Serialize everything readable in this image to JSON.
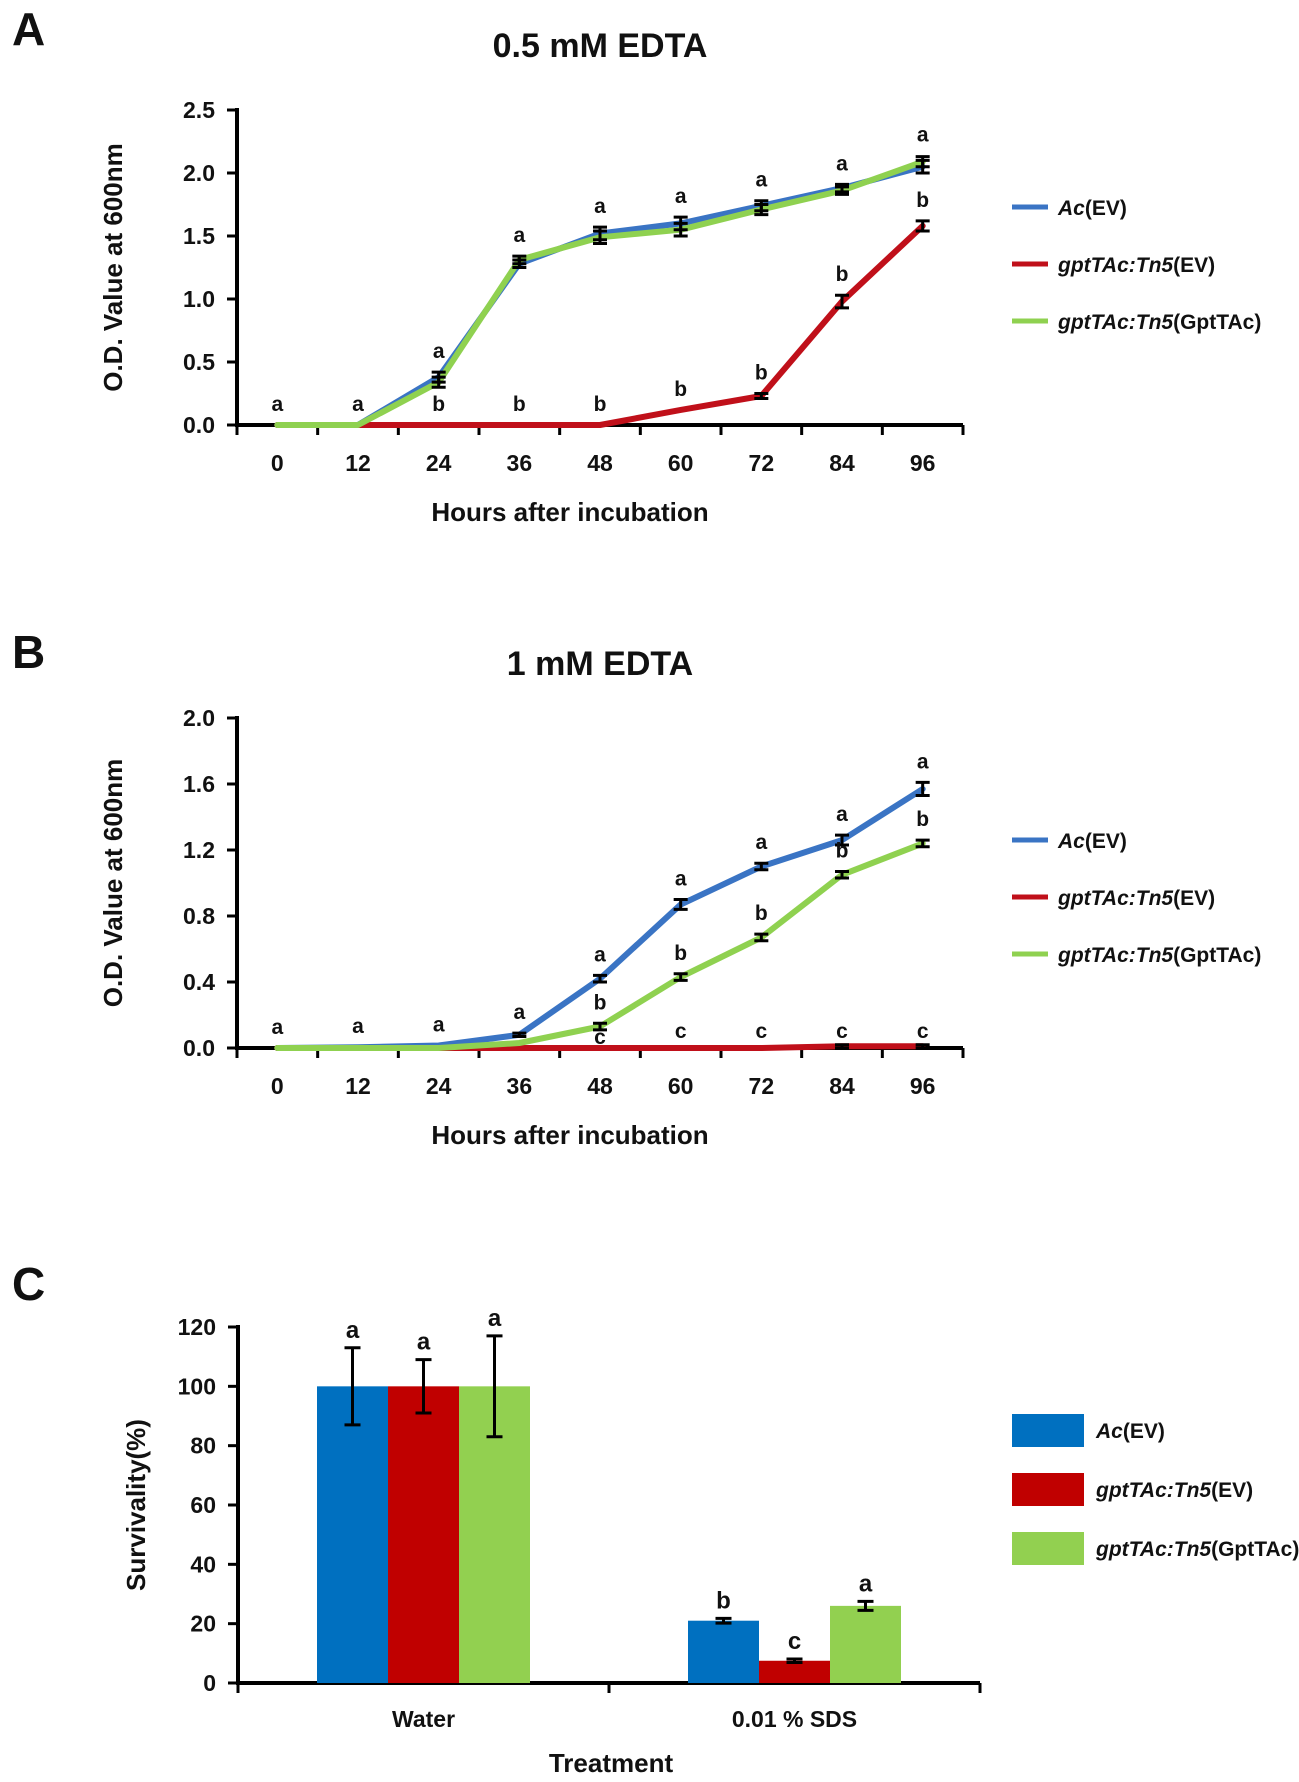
{
  "colors": {
    "ac_ev_line": "#3a74c4",
    "mutant_ev_line": "#c0101a",
    "complemented_line": "#8fd150",
    "ac_ev_bar": "#0070c0",
    "mutant_ev_bar": "#c00000",
    "complemented_bar": "#92d050"
  },
  "panels": {
    "a": "A",
    "b": "B",
    "c": "C"
  },
  "chart_data": [
    {
      "id": "A",
      "type": "line",
      "title": "0.5 mM EDTA",
      "xlabel": "Hours after incubation",
      "ylabel": "O.D. Value at 600nm",
      "x": [
        0,
        12,
        24,
        36,
        48,
        60,
        72,
        84,
        96
      ],
      "ylim": [
        0,
        2.5
      ],
      "yticks": [
        "0.0",
        "0.5",
        "1.0",
        "1.5",
        "2.0",
        "2.5"
      ],
      "series": [
        {
          "name": "Ac(EV)",
          "italic": "Ac",
          "suffix": "(EV)",
          "color": "#3a74c4",
          "values": [
            0,
            0,
            0.38,
            1.28,
            1.52,
            1.6,
            1.74,
            1.88,
            2.05
          ],
          "errors": [
            0,
            0,
            0.04,
            0.03,
            0.05,
            0.05,
            0.04,
            0.03,
            0.05
          ],
          "letters": [
            "a",
            "a",
            "a",
            "a",
            "a",
            "a",
            "a",
            "a",
            "a"
          ]
        },
        {
          "name": "gptTAc:Tn5(EV)",
          "italic": "gptTAc:Tn5",
          "suffix": "(EV)",
          "color": "#c0101a",
          "values": [
            0,
            0,
            0,
            0,
            0,
            0.12,
            0.23,
            0.98,
            1.58
          ],
          "errors": [
            0,
            0,
            0,
            0,
            0,
            0,
            0.02,
            0.05,
            0.04
          ],
          "letters": [
            "",
            "",
            "b",
            "b",
            "b",
            "b",
            "b",
            "b",
            "b"
          ]
        },
        {
          "name": "gptTAc:Tn5(GptTAc)",
          "italic": "gptTAc:Tn5",
          "suffix": "(GptTAc)",
          "color": "#8fd150",
          "values": [
            0,
            0,
            0.34,
            1.31,
            1.49,
            1.55,
            1.71,
            1.86,
            2.09
          ],
          "errors": [
            0,
            0,
            0.04,
            0.03,
            0.05,
            0.05,
            0.04,
            0.03,
            0.04
          ],
          "letters": [
            "",
            "",
            "",
            "",
            "",
            "",
            "",
            "",
            ""
          ]
        }
      ]
    },
    {
      "id": "B",
      "type": "line",
      "title": "1 mM EDTA",
      "xlabel": "Hours after incubation",
      "ylabel": "O.D. Value at 600nm",
      "x": [
        0,
        12,
        24,
        36,
        48,
        60,
        72,
        84,
        96
      ],
      "ylim": [
        0,
        2.0
      ],
      "yticks": [
        "0.0",
        "0.4",
        "0.8",
        "1.2",
        "1.6",
        "2.0"
      ],
      "series": [
        {
          "name": "Ac(EV)",
          "italic": "Ac",
          "suffix": "(EV)",
          "color": "#3a74c4",
          "values": [
            0,
            0.005,
            0.015,
            0.08,
            0.42,
            0.87,
            1.1,
            1.26,
            1.57
          ],
          "errors": [
            0,
            0,
            0,
            0.01,
            0.02,
            0.03,
            0.02,
            0.03,
            0.04
          ],
          "letters": [
            "a",
            "a",
            "a",
            "a",
            "a",
            "a",
            "a",
            "a",
            "a"
          ]
        },
        {
          "name": "gptTAc:Tn5(EV)",
          "italic": "gptTAc:Tn5",
          "suffix": "(EV)",
          "color": "#c0101a",
          "values": [
            0,
            0,
            0,
            0,
            0,
            0,
            0,
            0.01,
            0.01
          ],
          "errors": [
            0,
            0,
            0,
            0,
            0,
            0,
            0,
            0.01,
            0.01
          ],
          "letters": [
            "",
            "",
            "",
            "",
            "c",
            "c",
            "c",
            "c",
            "c"
          ]
        },
        {
          "name": "gptTAc:Tn5(GptTAc)",
          "italic": "gptTAc:Tn5",
          "suffix": "(GptTAc)",
          "color": "#8fd150",
          "values": [
            0,
            0,
            0,
            0.03,
            0.13,
            0.43,
            0.67,
            1.05,
            1.24
          ],
          "errors": [
            0,
            0,
            0,
            0,
            0.02,
            0.02,
            0.02,
            0.02,
            0.02
          ],
          "letters": [
            "",
            "",
            "",
            "",
            "b",
            "b",
            "b",
            "b",
            "b"
          ]
        }
      ]
    },
    {
      "id": "C",
      "type": "bar",
      "xlabel": "Treatment",
      "ylabel": "Survivality(%)",
      "categories": [
        "Water",
        "0.01 % SDS"
      ],
      "ylim": [
        0,
        120
      ],
      "yticks": [
        "0",
        "20",
        "40",
        "60",
        "80",
        "100",
        "120"
      ],
      "series": [
        {
          "name": "Ac(EV)",
          "italic": "Ac",
          "suffix": "(EV)",
          "color": "#0070c0",
          "values": [
            100,
            21
          ],
          "errors": [
            13,
            0.8
          ],
          "letters": [
            "a",
            "b"
          ]
        },
        {
          "name": "gptTAc:Tn5(EV)",
          "italic": "gptTAc:Tn5",
          "suffix": "(EV)",
          "color": "#c00000",
          "values": [
            100,
            7.5
          ],
          "errors": [
            9,
            0.6
          ],
          "letters": [
            "a",
            "c"
          ]
        },
        {
          "name": "gptTAc:Tn5(GptTAc)",
          "italic": "gptTAc:Tn5",
          "suffix": "(GptTAc)",
          "color": "#92d050",
          "values": [
            100,
            26
          ],
          "errors": [
            17,
            1.5
          ],
          "letters": [
            "a",
            "a"
          ]
        }
      ]
    }
  ]
}
